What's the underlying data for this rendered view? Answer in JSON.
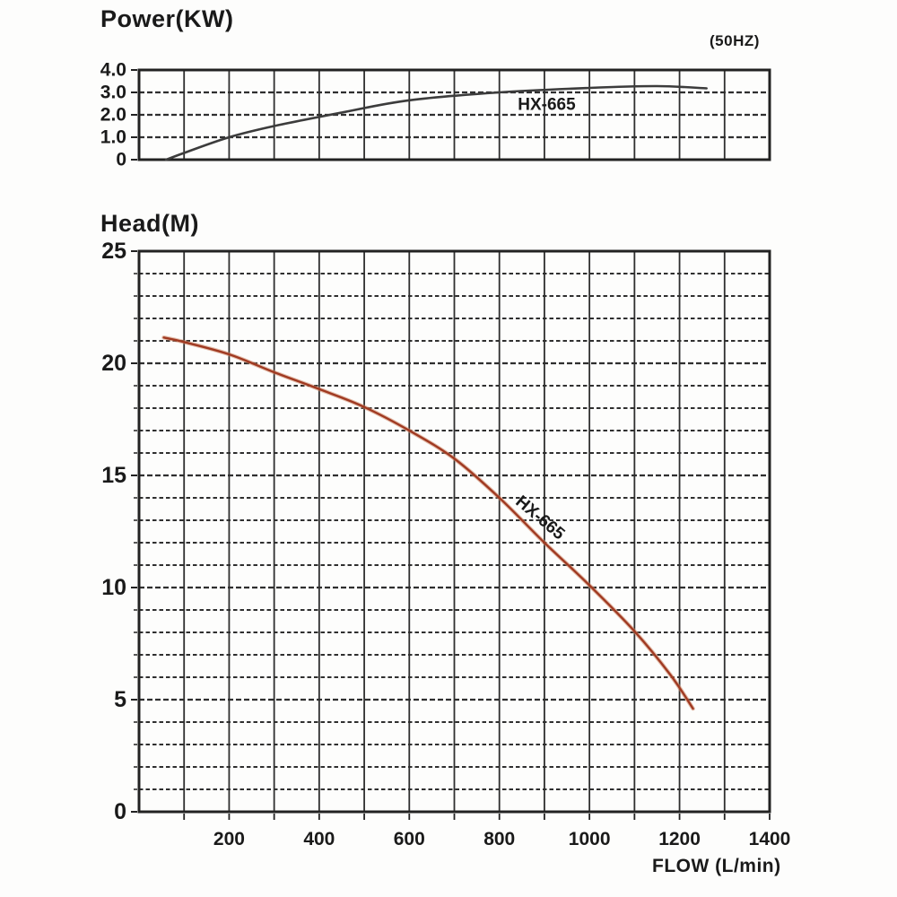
{
  "colors": {
    "background": "#fdfdfc",
    "grid": "#2f2f2f",
    "border": "#222222",
    "text": "#161616",
    "power_curve": "#3c3c3c",
    "head_curve": "#a03a22",
    "head_curve_halo": "#d08a6a"
  },
  "chart_data": [
    {
      "type": "line",
      "title": "Power(KW)",
      "annotation": "(50HZ)",
      "xlabel": "",
      "ylabel": "Power(KW)",
      "xlim": [
        0,
        1400
      ],
      "ylim": [
        0,
        4.0
      ],
      "grid": true,
      "x_grid_step": 100,
      "y_grid_step": 1.0,
      "y_tick_values": [
        0,
        1,
        2,
        3,
        4
      ],
      "y_tick_labels": [
        "0",
        "1.0",
        "2.0",
        "3.0",
        "4.0"
      ],
      "series": [
        {
          "name": "HX-665",
          "color": "#3c3c3c",
          "x": [
            60,
            100,
            200,
            300,
            450,
            600,
            800,
            1000,
            1150,
            1260
          ],
          "y": [
            0,
            0.3,
            1.0,
            1.5,
            2.1,
            2.65,
            3.0,
            3.2,
            3.28,
            3.18
          ],
          "label": {
            "text": "HX-665",
            "x": 905,
            "y": 2.45,
            "angle": 0
          }
        }
      ]
    },
    {
      "type": "line",
      "title": "Head(M)",
      "annotation": "",
      "xlabel": "FLOW (L/min)",
      "ylabel": "Head(M)",
      "xlim": [
        0,
        1400
      ],
      "ylim": [
        0,
        25
      ],
      "grid": true,
      "x_grid_step": 100,
      "y_grid_step": 1,
      "x_tick_values": [
        200,
        400,
        600,
        800,
        1000,
        1200,
        1400
      ],
      "x_tick_labels": [
        "200",
        "400",
        "600",
        "800",
        "1000",
        "1200",
        "1400"
      ],
      "x_minor_tick_step": 100,
      "y_tick_values": [
        0,
        5,
        10,
        15,
        20,
        25
      ],
      "y_tick_labels": [
        "0",
        "5",
        "10",
        "15",
        "20",
        "25"
      ],
      "series": [
        {
          "name": "HX-665",
          "color": "#a03a22",
          "x": [
            55,
            100,
            200,
            300,
            400,
            500,
            600,
            700,
            800,
            900,
            1000,
            1100,
            1180,
            1230
          ],
          "y": [
            21.15,
            20.95,
            20.4,
            19.6,
            18.85,
            18.05,
            17.0,
            15.75,
            14.0,
            12.0,
            10.1,
            8.05,
            6.1,
            4.6
          ],
          "label": {
            "text": "HX-665",
            "x": 890,
            "y": 13.1,
            "angle": 40
          }
        }
      ]
    }
  ]
}
